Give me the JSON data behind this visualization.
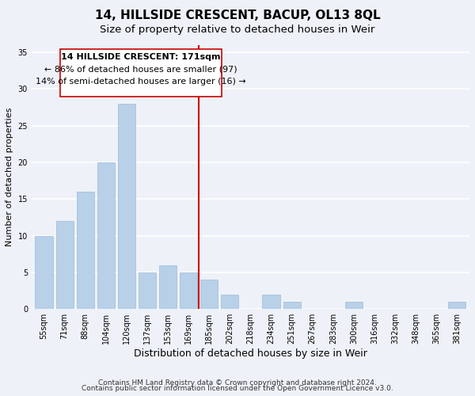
{
  "title": "14, HILLSIDE CRESCENT, BACUP, OL13 8QL",
  "subtitle": "Size of property relative to detached houses in Weir",
  "xlabel": "Distribution of detached houses by size in Weir",
  "ylabel": "Number of detached properties",
  "bar_labels": [
    "55sqm",
    "71sqm",
    "88sqm",
    "104sqm",
    "120sqm",
    "137sqm",
    "153sqm",
    "169sqm",
    "185sqm",
    "202sqm",
    "218sqm",
    "234sqm",
    "251sqm",
    "267sqm",
    "283sqm",
    "300sqm",
    "316sqm",
    "332sqm",
    "348sqm",
    "365sqm",
    "381sqm"
  ],
  "bar_heights": [
    10,
    12,
    16,
    20,
    28,
    5,
    6,
    5,
    4,
    2,
    0,
    2,
    1,
    0,
    0,
    1,
    0,
    0,
    0,
    0,
    1
  ],
  "bar_color": "#b8d0e8",
  "bar_edge_color": "#a0bcd8",
  "property_line_x_label": "169sqm",
  "property_line_label": "14 HILLSIDE CRESCENT: 171sqm",
  "annotation_line1": "← 86% of detached houses are smaller (97)",
  "annotation_line2": "14% of semi-detached houses are larger (16) →",
  "vline_color": "#cc0000",
  "box_facecolor": "#ffffff",
  "box_edgecolor": "#cc0000",
  "ylim": [
    0,
    36
  ],
  "yticks": [
    0,
    5,
    10,
    15,
    20,
    25,
    30,
    35
  ],
  "footer1": "Contains HM Land Registry data © Crown copyright and database right 2024.",
  "footer2": "Contains public sector information licensed under the Open Government Licence v3.0.",
  "bg_color": "#eef2f8",
  "grid_color": "#ffffff",
  "title_fontsize": 11,
  "subtitle_fontsize": 9.5,
  "xlabel_fontsize": 9,
  "ylabel_fontsize": 8,
  "tick_fontsize": 7,
  "footer_fontsize": 6.5,
  "annotation_fontsize": 8
}
